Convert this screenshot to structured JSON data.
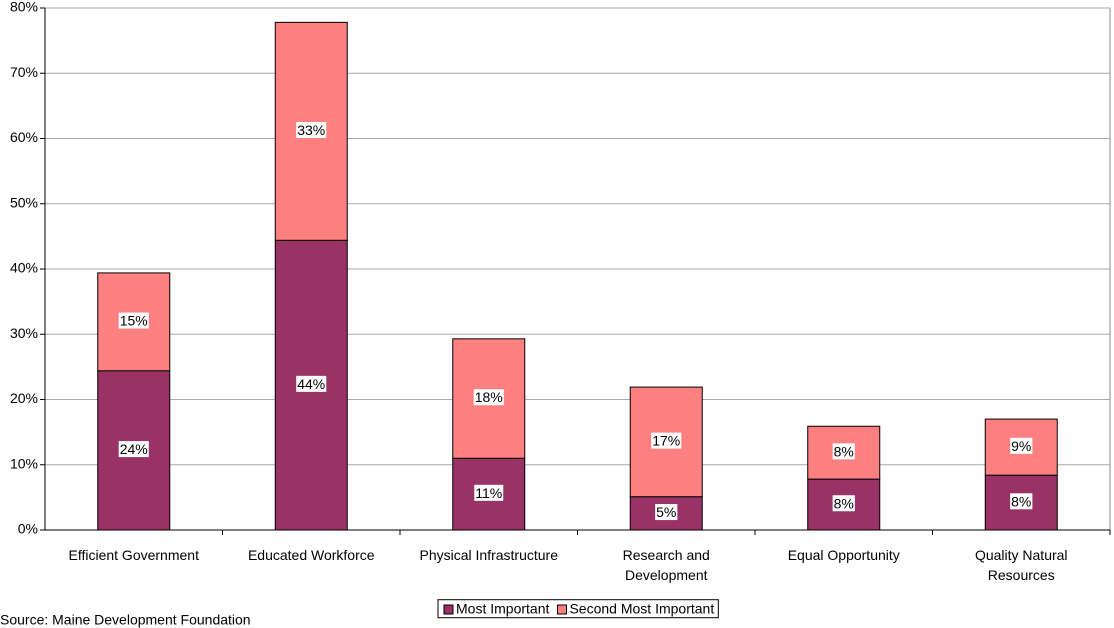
{
  "chart_data": {
    "type": "stacked_bar",
    "categories": [
      "Efficient Government",
      "Educated Workforce",
      "Physical Infrastructure",
      "Research and Development",
      "Equal Opportunity",
      "Quality Natural Resources"
    ],
    "series": [
      {
        "name": "Most Important",
        "color": "#993366",
        "values": [
          24.4,
          44.4,
          11.0,
          5.1,
          7.8,
          8.4
        ],
        "value_labels": [
          "24%",
          "44%",
          "11%",
          "5%",
          "8%",
          "8%"
        ]
      },
      {
        "name": "Second Most Important",
        "color": "#ff8080",
        "values": [
          15.0,
          33.4,
          18.3,
          16.8,
          8.1,
          8.6
        ],
        "value_labels": [
          "15%",
          "33%",
          "18%",
          "17%",
          "8%",
          "9%"
        ]
      }
    ],
    "ylim": [
      0,
      80
    ],
    "yticks": [
      {
        "value": 0,
        "label": "0%"
      },
      {
        "value": 10,
        "label": "10%"
      },
      {
        "value": 20,
        "label": "20%"
      },
      {
        "value": 30,
        "label": "30%"
      },
      {
        "value": 40,
        "label": "40%"
      },
      {
        "value": 50,
        "label": "50%"
      },
      {
        "value": 60,
        "label": "60%"
      },
      {
        "value": 70,
        "label": "70%"
      },
      {
        "value": 80,
        "label": "80%"
      }
    ],
    "grid": true,
    "legend": "bottom",
    "source": "Source: Maine Development Foundation"
  }
}
